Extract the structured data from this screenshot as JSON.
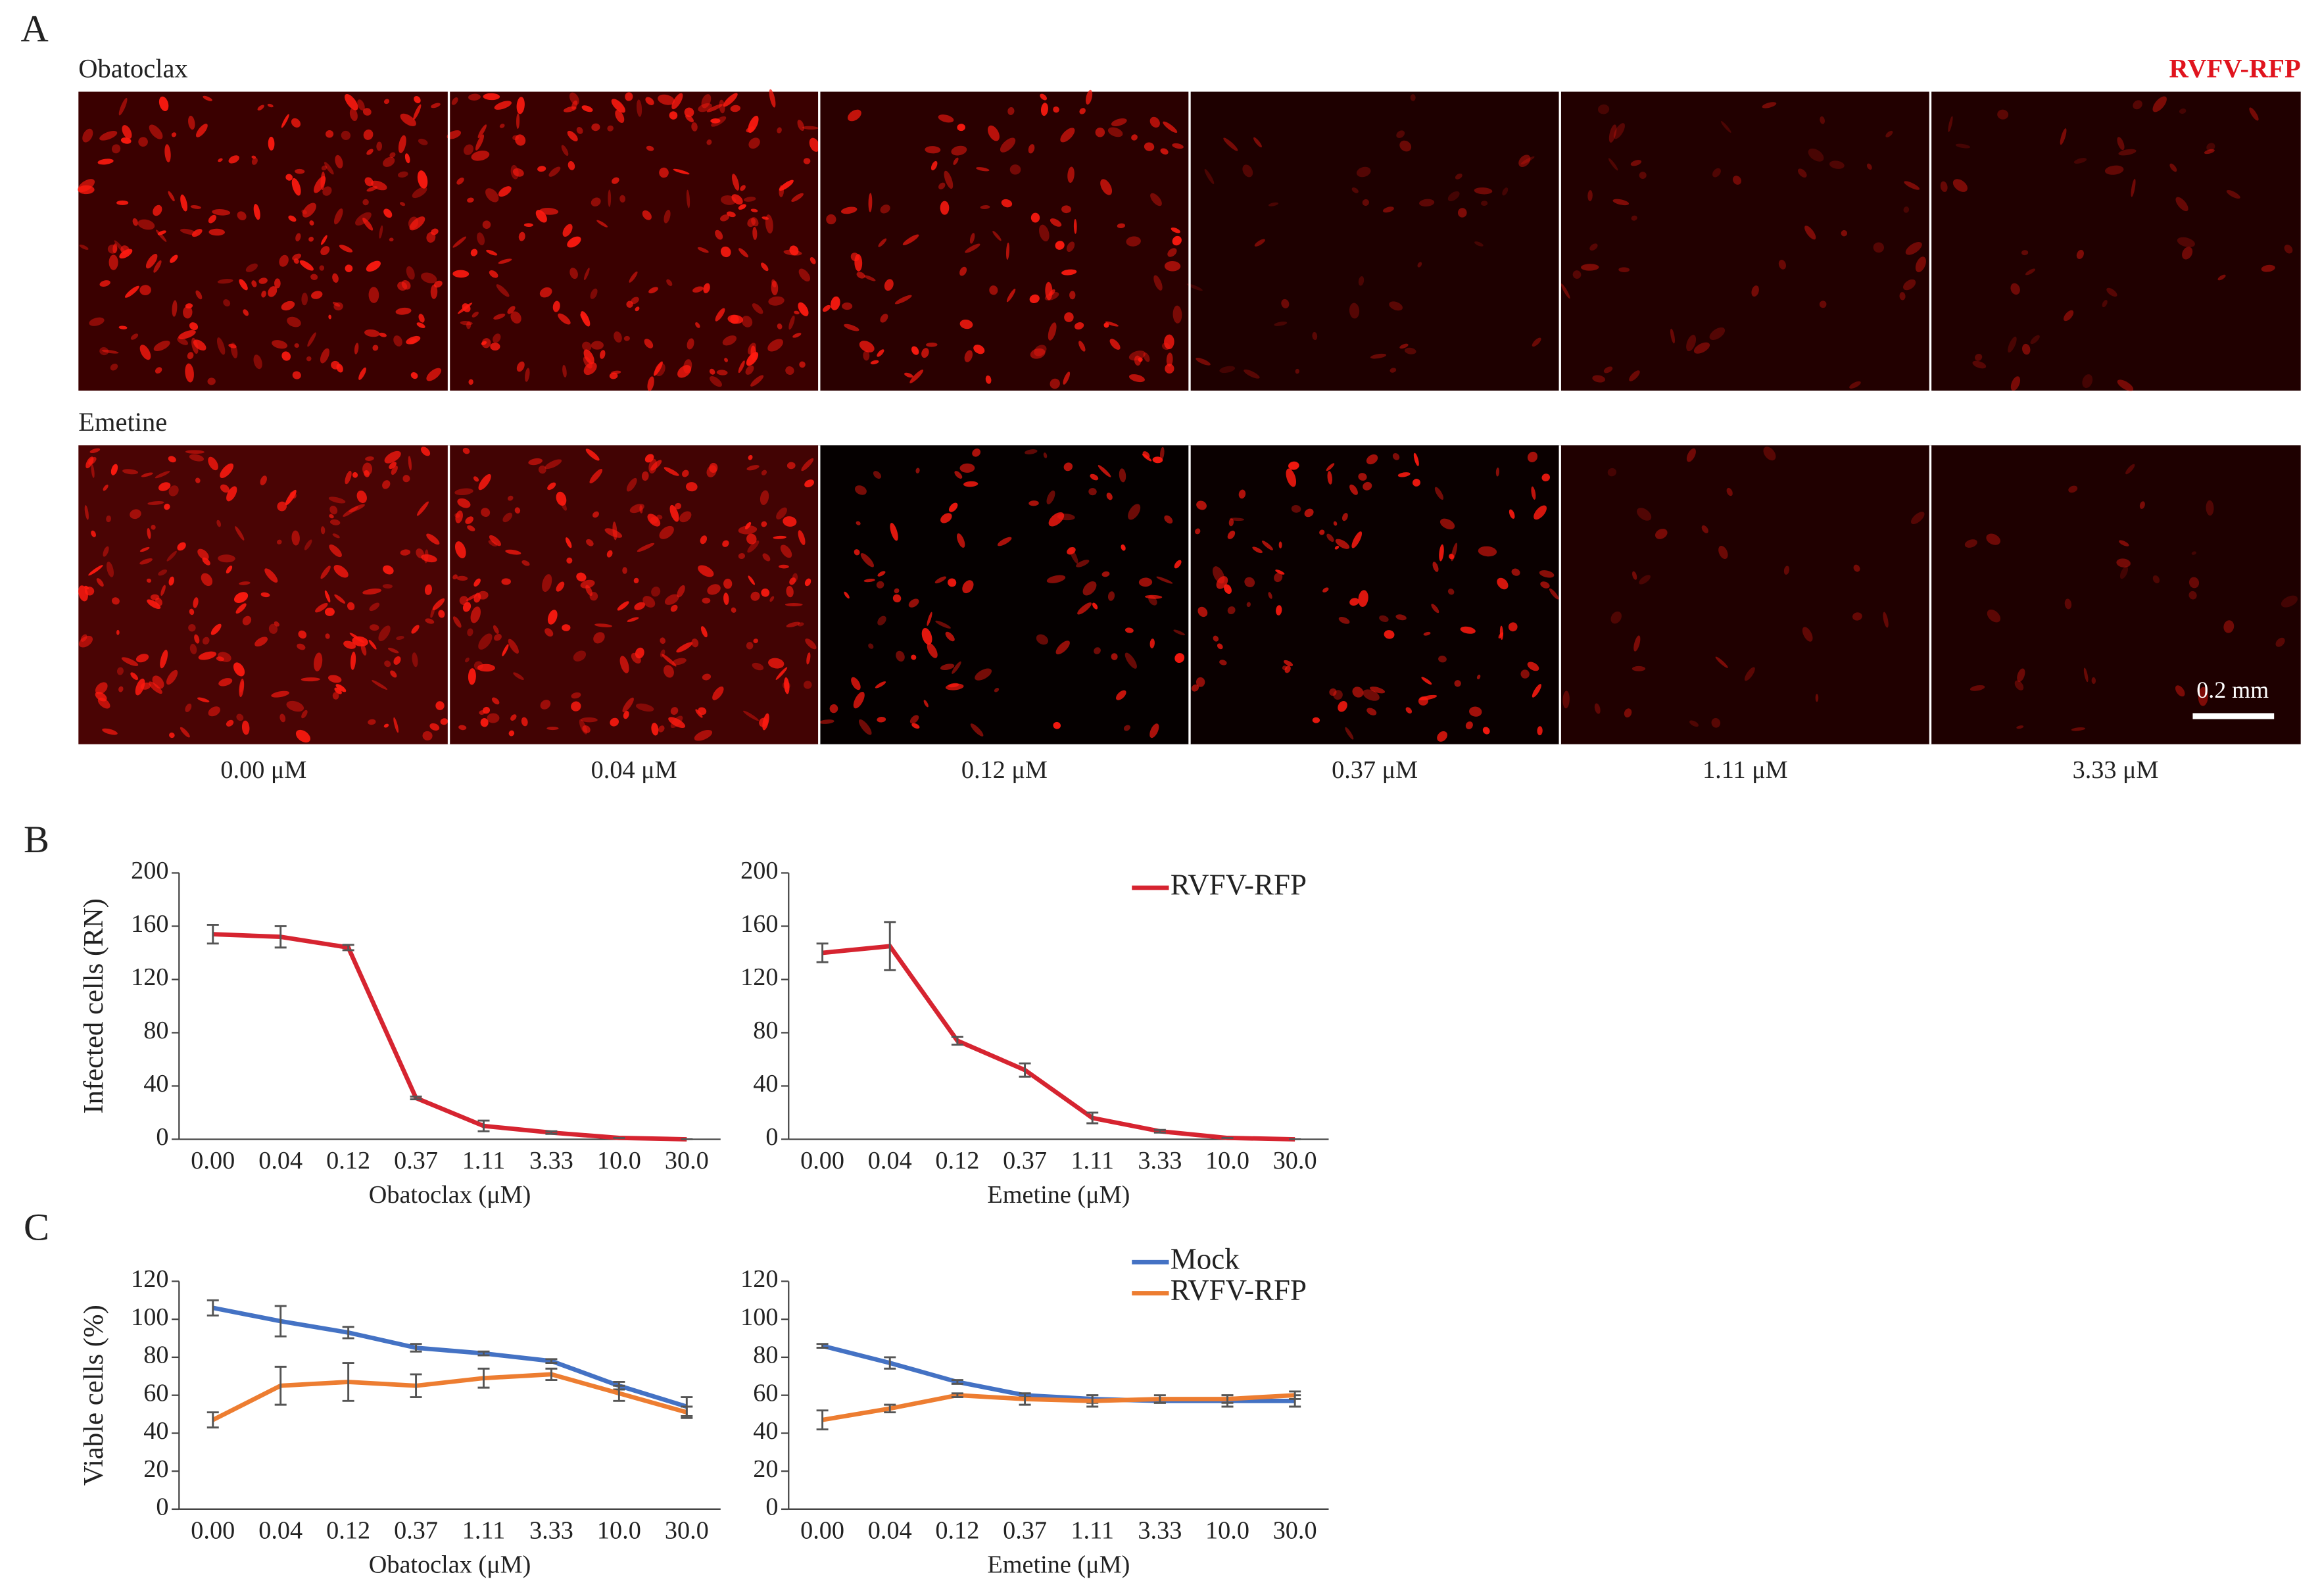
{
  "figure": {
    "panels": [
      "A",
      "B",
      "C"
    ],
    "rows": [
      "Obatoclax",
      "Emetine"
    ],
    "label": "RVFV-RFP",
    "scale_bar": "0.2 mm",
    "doses": [
      "0.00 μM",
      "0.04 μM",
      "0.12 μM",
      "0.37 μM",
      "1.11 μM",
      "3.33 μM"
    ]
  },
  "chart_data": [
    {
      "type": "line",
      "ylabel": "Infected cells (RN)",
      "xlabel": "Obatoclax (μM)",
      "categories": [
        "0.00",
        "0.04",
        "0.12",
        "0.37",
        "1.11",
        "3.33",
        "10.0",
        "30.0"
      ],
      "series": [
        {
          "color": "#d62430",
          "values": [
            154,
            152,
            144,
            31,
            10,
            5,
            1,
            0
          ],
          "errors": [
            7,
            8,
            2,
            1,
            4,
            1,
            0,
            0
          ]
        }
      ],
      "ylim": [
        0,
        200
      ],
      "yticks": [
        0,
        40,
        80,
        120,
        160,
        200
      ]
    },
    {
      "type": "line",
      "xlabel": "Emetine (μM)",
      "categories": [
        "0.00",
        "0.04",
        "0.12",
        "0.37",
        "1.11",
        "3.33",
        "10.0",
        "30.0"
      ],
      "series": [
        {
          "name": "RVFV-RFP",
          "color": "#d62430",
          "values": [
            140,
            145,
            74,
            52,
            16,
            6,
            1,
            0
          ],
          "errors": [
            7,
            18,
            3,
            5,
            4,
            1,
            0,
            0
          ]
        }
      ],
      "ylim": [
        0,
        200
      ],
      "yticks": [
        0,
        40,
        80,
        120,
        160,
        200
      ],
      "legend": "top-right"
    },
    {
      "type": "line",
      "ylabel": "Viable cells (%)",
      "xlabel": "Obatoclax (μM)",
      "categories": [
        "0.00",
        "0.04",
        "0.12",
        "0.37",
        "1.11",
        "3.33",
        "10.0",
        "30.0"
      ],
      "series": [
        {
          "color": "#4472c4",
          "values": [
            106,
            99,
            93,
            85,
            82,
            78,
            65,
            54
          ],
          "errors": [
            4,
            8,
            3,
            2,
            1,
            1,
            2,
            5
          ]
        },
        {
          "color": "#ed7d31",
          "values": [
            47,
            65,
            67,
            65,
            69,
            71,
            61,
            51
          ],
          "errors": [
            4,
            10,
            10,
            6,
            5,
            3,
            4,
            3
          ]
        }
      ],
      "ylim": [
        0,
        120
      ],
      "yticks": [
        0,
        20,
        40,
        60,
        80,
        100,
        120
      ]
    },
    {
      "type": "line",
      "xlabel": "Emetine (μM)",
      "categories": [
        "0.00",
        "0.04",
        "0.12",
        "0.37",
        "1.11",
        "3.33",
        "10.0",
        "30.0"
      ],
      "series": [
        {
          "name": "Mock",
          "color": "#4472c4",
          "values": [
            86,
            77,
            67,
            60,
            58,
            57,
            57,
            57
          ],
          "errors": [
            1,
            3,
            1,
            1,
            2,
            1,
            3,
            3
          ]
        },
        {
          "name": "RVFV-RFP",
          "color": "#ed7d31",
          "values": [
            47,
            53,
            60,
            58,
            57,
            58,
            58,
            60
          ],
          "errors": [
            5,
            2,
            1,
            3,
            3,
            2,
            2,
            2
          ]
        }
      ],
      "ylim": [
        0,
        120
      ],
      "yticks": [
        0,
        20,
        40,
        60,
        80,
        100,
        120
      ],
      "legend": "top-right"
    }
  ]
}
